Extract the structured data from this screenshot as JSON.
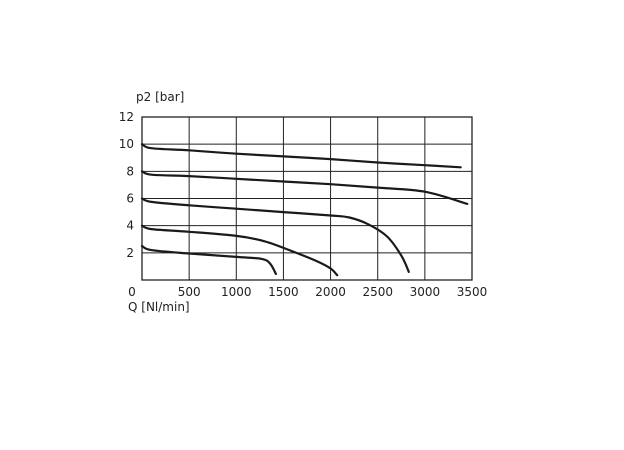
{
  "chart_data": {
    "type": "line",
    "xlabel": "Q [Nl/min]",
    "ylabel": "p2 [bar]",
    "xlim": [
      0,
      3500
    ],
    "ylim": [
      0,
      12
    ],
    "x_ticks": [
      "0",
      "500",
      "1000",
      "1500",
      "2000",
      "2500",
      "3000",
      "3500"
    ],
    "y_ticks": [
      "2",
      "4",
      "6",
      "8",
      "10",
      "12"
    ],
    "grid": true,
    "series": [
      {
        "points": [
          [
            0,
            10.0
          ],
          [
            100,
            9.7
          ],
          [
            500,
            9.55
          ],
          [
            1000,
            9.3
          ],
          [
            1500,
            9.1
          ],
          [
            2000,
            8.9
          ],
          [
            2500,
            8.65
          ],
          [
            3000,
            8.45
          ],
          [
            3380,
            8.3
          ]
        ]
      },
      {
        "points": [
          [
            0,
            8.0
          ],
          [
            100,
            7.75
          ],
          [
            500,
            7.65
          ],
          [
            1000,
            7.45
          ],
          [
            1500,
            7.25
          ],
          [
            2000,
            7.05
          ],
          [
            2500,
            6.8
          ],
          [
            3000,
            6.5
          ],
          [
            3450,
            5.6
          ]
        ]
      },
      {
        "points": [
          [
            0,
            6.0
          ],
          [
            100,
            5.75
          ],
          [
            500,
            5.5
          ],
          [
            1000,
            5.25
          ],
          [
            1500,
            5.0
          ],
          [
            2000,
            4.75
          ],
          [
            2200,
            4.6
          ],
          [
            2400,
            4.1
          ],
          [
            2600,
            3.2
          ],
          [
            2750,
            1.8
          ],
          [
            2830,
            0.6
          ]
        ]
      },
      {
        "points": [
          [
            0,
            4.0
          ],
          [
            100,
            3.75
          ],
          [
            500,
            3.55
          ],
          [
            1000,
            3.25
          ],
          [
            1300,
            2.85
          ],
          [
            1600,
            2.1
          ],
          [
            1850,
            1.4
          ],
          [
            2000,
            0.85
          ],
          [
            2070,
            0.35
          ]
        ]
      },
      {
        "points": [
          [
            0,
            2.5
          ],
          [
            100,
            2.2
          ],
          [
            500,
            1.95
          ],
          [
            1000,
            1.7
          ],
          [
            1270,
            1.55
          ],
          [
            1360,
            1.2
          ],
          [
            1420,
            0.45
          ]
        ]
      }
    ]
  }
}
